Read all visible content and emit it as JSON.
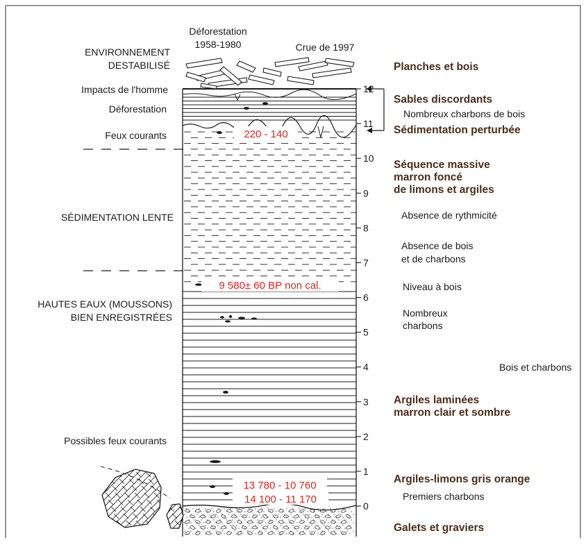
{
  "colors": {
    "frame": "#5a5a5a",
    "line": "#1a1a1a",
    "annotation_red": "#e2231a",
    "bold_brown": "#4a2d17"
  },
  "header": {
    "deforestation": "Déforestation",
    "deforestation_years": "1958-1980",
    "flood": "Crue de 1997"
  },
  "left_labels": {
    "environment_line1": "ENVIRONNEMENT",
    "environment_line2": "DESTABILISÉ",
    "human_impacts": "Impacts de l'homme",
    "deforestation": "Déforestation",
    "frequent_fires_top": "Feux courants",
    "slow_sedimentation": "SÉDIMENTATION LENTE",
    "high_water_line1": "HAUTES EAUX (MOUSSONS)",
    "high_water_line2": "BIEN ENREGISTRÉES",
    "possible_fires": "Possibles feux courants"
  },
  "dates": {
    "d1": "220 - 140",
    "d2": "9 580± 60 BP non cal.",
    "d3": "13 780 - 10 760",
    "d4": "14 100 - 11 170"
  },
  "depth_scale": {
    "ticks": [
      "0",
      "1",
      "2",
      "3",
      "4",
      "5",
      "6",
      "7",
      "8",
      "9",
      "10",
      "11",
      "12"
    ]
  },
  "right_labels": {
    "planks": "Planches et bois",
    "sands": "Sables discordants",
    "many_charcoal": "Nombreux charbons de bois",
    "disturbed": "Sédimentation perturbée",
    "massive_line1": "Séquence massive",
    "massive_line2": "marron foncé",
    "massive_line3": "de limons et argiles",
    "no_rhythm": "Absence de rythmicité",
    "no_wood_line1": "Absence de bois",
    "no_wood_line2": "et de charbons",
    "wood_level": "Niveau à bois",
    "numerous_line1": "Nombreux",
    "numerous_line2": "charbons",
    "wood_and_charcoal": "Bois et charbons",
    "laminated_line1": "Argiles laminées",
    "laminated_line2": "marron clair et sombre",
    "clay_silt": "Argiles-limons gris orange",
    "first_charcoal": "Premiers charbons",
    "gravel": "Galets et graviers"
  }
}
